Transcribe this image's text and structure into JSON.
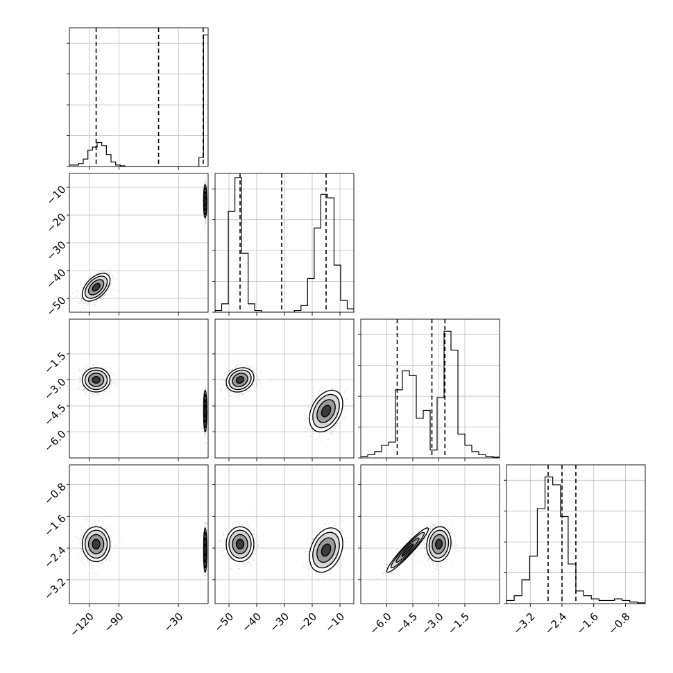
{
  "chart_data": {
    "type": "corner",
    "parameters": [
      {
        "range": [
          -140,
          0
        ],
        "ticks": [
          -120,
          -90,
          -30
        ],
        "tick_labels": [
          "−120",
          "−90",
          "−30"
        ],
        "quantiles": [
          -113,
          -50,
          -5
        ],
        "hist": [
          0.01,
          0.01,
          0.02,
          0.05,
          0.11,
          0.13,
          0.16,
          0.14,
          0.08,
          0.03,
          0.01,
          0.005,
          0,
          0,
          0,
          0,
          0,
          0,
          0,
          0,
          0,
          0,
          0,
          0,
          0,
          0,
          0,
          0,
          0.06,
          0.88
        ],
        "hist_ymax": 0.9
      },
      {
        "range": [
          -55,
          -5
        ],
        "ticks": [
          -50,
          -40,
          -30,
          -20,
          -10
        ],
        "tick_labels": [
          "−50",
          "−40",
          "−30",
          "−20",
          "−10"
        ],
        "quantiles": [
          -46,
          -31,
          -15
        ],
        "hist": [
          0.01,
          0.05,
          0.6,
          0.8,
          0.35,
          0.05,
          0.01,
          0,
          0,
          0,
          0,
          0,
          0.01,
          0.04,
          0.2,
          0.5,
          0.7,
          0.68,
          0.28,
          0.07,
          0.02
        ],
        "hist_ymax": 0.8
      },
      {
        "range": [
          -7.5,
          0.5
        ],
        "ticks": [
          -6.0,
          -4.5,
          -3.0,
          -1.5
        ],
        "tick_labels": [
          "−6.0",
          "−4.5",
          "−3.0",
          "−1.5"
        ],
        "quantiles": [
          -5.4,
          -3.4,
          -2.65
        ],
        "hist": [
          0.01,
          0.02,
          0.04,
          0.08,
          0.1,
          0.43,
          0.55,
          0.52,
          0.25,
          0.3,
          0.05,
          0.38,
          0.8,
          0.68,
          0.15,
          0.08,
          0.04,
          0.02,
          0.01,
          0.005
        ],
        "hist_ymax": 0.85
      },
      {
        "range": [
          -3.8,
          -0.3
        ],
        "ticks": [
          -3.2,
          -2.4,
          -1.6,
          -0.8
        ],
        "tick_labels": [
          "−3.2",
          "−2.4",
          "−1.6",
          "−0.8"
        ],
        "quantiles": [
          -2.75,
          -2.4,
          -2.05
        ],
        "hist": [
          0.02,
          0.05,
          0.15,
          0.3,
          0.6,
          0.8,
          0.75,
          0.55,
          0.25,
          0.08,
          0.05,
          0.03,
          0.02,
          0.02,
          0.03,
          0.02,
          0.01,
          0.005
        ],
        "hist_ymax": 0.85
      }
    ],
    "modes": [
      {
        "center": [
          -113,
          -46,
          -3.0,
          -2.3
        ],
        "sd": [
          7,
          2.5,
          0.35,
          0.22
        ],
        "corr": {
          "0-1": 0.5,
          "0-2": 0,
          "0-3": 0,
          "1-2": 0.2,
          "1-3": 0,
          "2-3": 0.1
        },
        "weight": 0.6
      },
      {
        "center": [
          -3,
          -15,
          -4.8,
          -2.45
        ],
        "sd": [
          0.8,
          3,
          0.6,
          0.28
        ],
        "corr": {
          "0-1": 0,
          "0-2": 0,
          "0-3": 0,
          "1-2": 0.35,
          "1-3": 0.3,
          "2-3": 0.95
        },
        "weight": 0.35
      }
    ]
  }
}
